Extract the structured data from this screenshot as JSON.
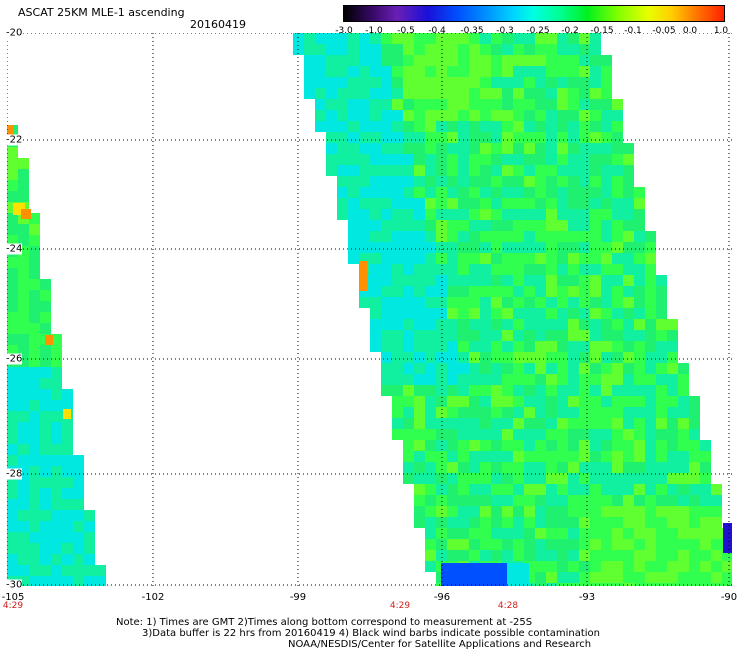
{
  "title": "ASCAT 25KM MLE-1 ascending",
  "date": "20160419",
  "colorbar": {
    "labels": [
      "-3.0",
      "-1.0",
      "-0.5",
      "-0.4",
      "-0.35",
      "-0.3",
      "-0.25",
      "-0.2",
      "-0.15",
      "-0.1",
      "-0.05",
      "0.0",
      "1.0"
    ],
    "colors": [
      "#000000",
      "#3b0a6e",
      "#6a1fb5",
      "#1a10d8",
      "#0050ff",
      "#0096ff",
      "#00d8ff",
      "#00ffe0",
      "#00ff90",
      "#00f020",
      "#80ff00",
      "#e8ff00",
      "#ffd000",
      "#ff8000",
      "#ff2000"
    ]
  },
  "map": {
    "lat_labels": [
      "-20",
      "-22",
      "-24",
      "-26",
      "-28",
      "-30"
    ],
    "lon_labels": [
      "-105",
      "-102",
      "-99",
      "-96",
      "-93",
      "-90"
    ],
    "time_labels": [
      "4:29",
      "4:29",
      "4:28"
    ],
    "lat_range": [
      -30,
      -20
    ],
    "lon_range": [
      -105,
      -90
    ],
    "swath_colors": [
      "#10f0a0",
      "#20f070",
      "#30ff50",
      "#60ff30",
      "#00e8e0"
    ],
    "edge_colors": [
      "#ff9000",
      "#ffe000",
      "#0050ff",
      "#2010d0"
    ]
  },
  "notes": {
    "line1": "Note: 1) Times are GMT 2)Times along bottom correspond to measurement at -25S",
    "line2": "3)Data buffer is 22 hrs from 20160419 4) Black wind barbs indicate possible contamination",
    "credit": "NOAA/NESDIS/Center for Satellite Applications and Research"
  }
}
